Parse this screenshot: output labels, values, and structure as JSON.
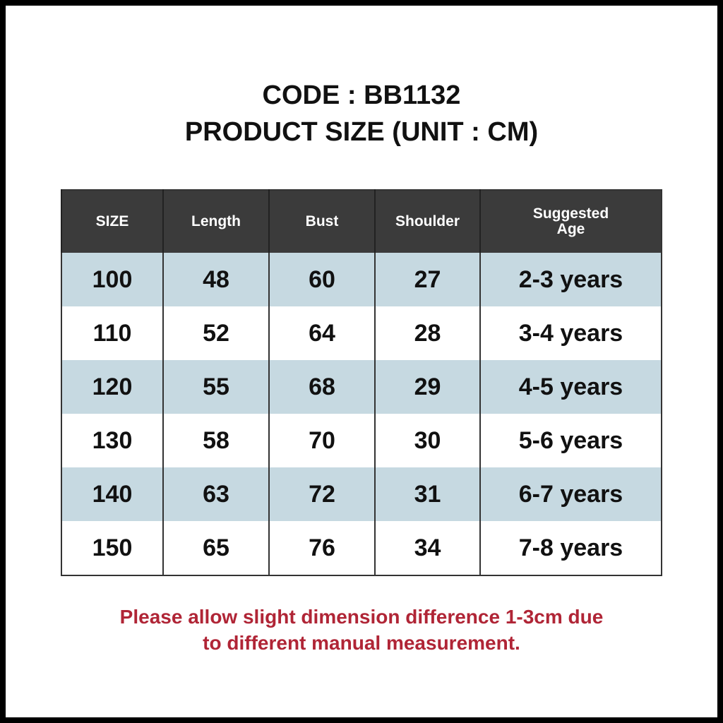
{
  "header": {
    "title": [
      "CODE : BB1132",
      "PRODUCT SIZE (UNIT : CM)"
    ]
  },
  "table": {
    "columns": [
      "SIZE",
      "Length",
      "Bust",
      "Shoulder",
      "Suggested Age"
    ],
    "rows": [
      [
        100,
        48,
        60,
        27,
        "2-3 years"
      ],
      [
        110,
        52,
        64,
        28,
        "3-4 years"
      ],
      [
        120,
        55,
        68,
        29,
        "4-5 years"
      ],
      [
        130,
        58,
        70,
        30,
        "5-6 years"
      ],
      [
        140,
        63,
        72,
        31,
        "6-7 years"
      ],
      [
        150,
        65,
        76,
        34,
        "7-8 years"
      ]
    ]
  },
  "note": {
    "lines": [
      "Please allow slight dimension difference 1-3cm due",
      "to different manual measurement."
    ]
  }
}
